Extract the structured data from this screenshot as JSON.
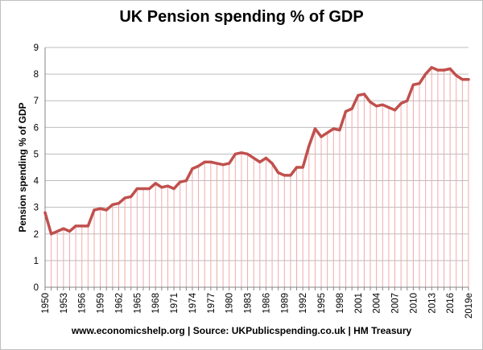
{
  "chart_data": {
    "type": "line",
    "title": "UK Pension spending % of GDP",
    "xlabel": "",
    "ylabel": "Pension spending % of GDP",
    "ylim": [
      0,
      9
    ],
    "yticks": [
      0,
      1,
      2,
      3,
      4,
      5,
      6,
      7,
      8,
      9
    ],
    "x_tick_labels": [
      "1950",
      "1953",
      "1956",
      "1959",
      "1962",
      "1965",
      "1968",
      "1971",
      "1974",
      "1977",
      "1980",
      "1983",
      "1986",
      "1989",
      "1992",
      "1995",
      "1998",
      "2001",
      "2004",
      "2007",
      "2010",
      "2013",
      "2016",
      "2019e"
    ],
    "x_tick_interval": 3,
    "grid": "horizontal",
    "series": [
      {
        "name": "Pension spending % of GDP",
        "color": "#c0504d",
        "drop_line_color": "#f2aaaa",
        "x": [
          "1950",
          "1951",
          "1952",
          "1953",
          "1954",
          "1955",
          "1956",
          "1957",
          "1958",
          "1959",
          "1960",
          "1961",
          "1962",
          "1963",
          "1964",
          "1965",
          "1966",
          "1967",
          "1968",
          "1969",
          "1970",
          "1971",
          "1972",
          "1973",
          "1974",
          "1975",
          "1976",
          "1977",
          "1978",
          "1979",
          "1980",
          "1981",
          "1982",
          "1983",
          "1984",
          "1985",
          "1986",
          "1987",
          "1988",
          "1989",
          "1990",
          "1991",
          "1992",
          "1993",
          "1994",
          "1995",
          "1996",
          "1997",
          "1998",
          "1999",
          "2000",
          "2001",
          "2002",
          "2003",
          "2004",
          "2005",
          "2006",
          "2007",
          "2008",
          "2009",
          "2010",
          "2011",
          "2012",
          "2013",
          "2014",
          "2015",
          "2016",
          "2017",
          "2018",
          "2019e"
        ],
        "values": [
          2.8,
          2.0,
          2.1,
          2.2,
          2.1,
          2.3,
          2.3,
          2.3,
          2.9,
          2.95,
          2.9,
          3.1,
          3.15,
          3.35,
          3.4,
          3.7,
          3.7,
          3.7,
          3.9,
          3.75,
          3.8,
          3.7,
          3.95,
          4.0,
          4.45,
          4.55,
          4.7,
          4.7,
          4.65,
          4.6,
          4.65,
          5.0,
          5.05,
          5.0,
          4.85,
          4.7,
          4.85,
          4.65,
          4.3,
          4.2,
          4.2,
          4.5,
          4.5,
          5.3,
          5.95,
          5.65,
          5.8,
          5.95,
          5.9,
          6.6,
          6.7,
          7.2,
          7.25,
          6.95,
          6.8,
          6.85,
          6.75,
          6.65,
          6.9,
          7.0,
          7.6,
          7.65,
          8.0,
          8.25,
          8.15,
          8.15,
          8.2,
          7.95,
          7.8,
          7.8
        ]
      }
    ]
  },
  "footer": {
    "source": "www.economicshelp.org | Source: UKPublicspending.co.uk | HM Treasury"
  }
}
